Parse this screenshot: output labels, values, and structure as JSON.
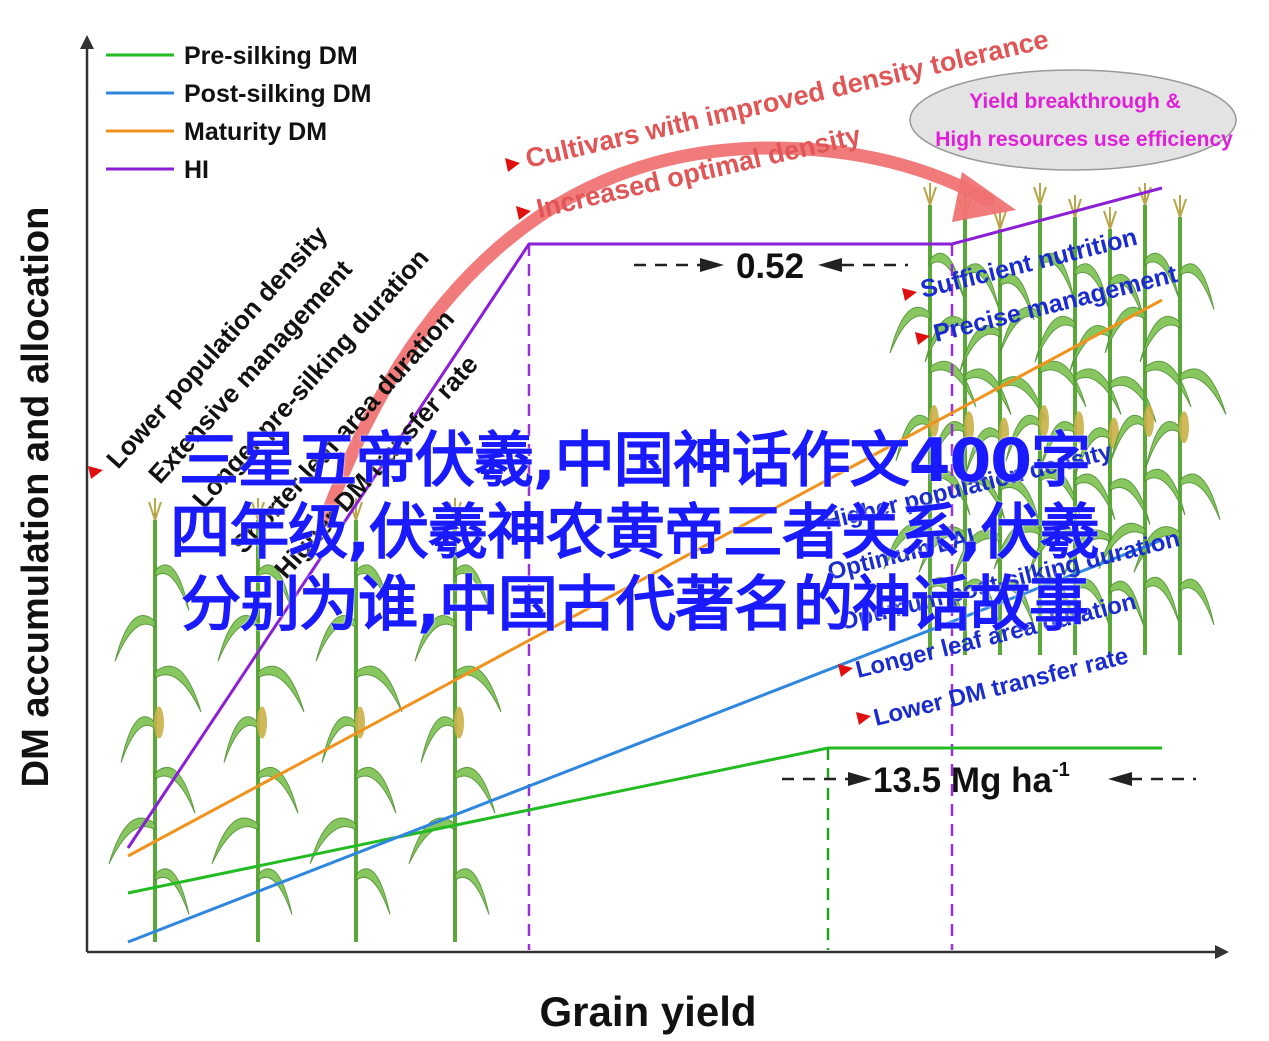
{
  "figure": {
    "y_axis_label": "DM accumulation and allocation",
    "x_axis_label": "Grain yield",
    "legend": [
      {
        "label": "Pre-silking DM",
        "color": "#22bb22"
      },
      {
        "label": "Post-silking DM",
        "color": "#2e86de"
      },
      {
        "label": "Maturity DM",
        "color": "#f0931e"
      },
      {
        "label": "HI",
        "color": "#8a1fd6"
      }
    ],
    "hi_label": "0.52",
    "yield_label": "13.5 Mg ha",
    "yield_label_sup": "-1",
    "arrow_labels": [
      "Cultivars with improved density tolerance",
      "Increased optimal density"
    ],
    "ellipse_label": [
      "Yield breakthrough &",
      "High resources use efficiency"
    ],
    "left_factors": [
      "Lower population density",
      "Extensive management",
      "Longer pre-silking duration",
      "Shorter leaf area duration",
      "Higher DM transfer rate"
    ],
    "right_top_factors": [
      "Sufficient nutrition",
      "Precise management"
    ],
    "right_factors": [
      "Higher population density",
      "Optimum LAI",
      "Optimum post-silking duration",
      "Longer leaf area duration",
      "Lower DM transfer rate"
    ],
    "plant_icon": "maize-plant-icon"
  },
  "overlay_title": [
    "三星五帝伏羲,中国神话作文400字",
    "四年级,伏羲神农黄帝三者关系,伏羲",
    "分别为谁,中国古代著名的神话故事"
  ]
}
